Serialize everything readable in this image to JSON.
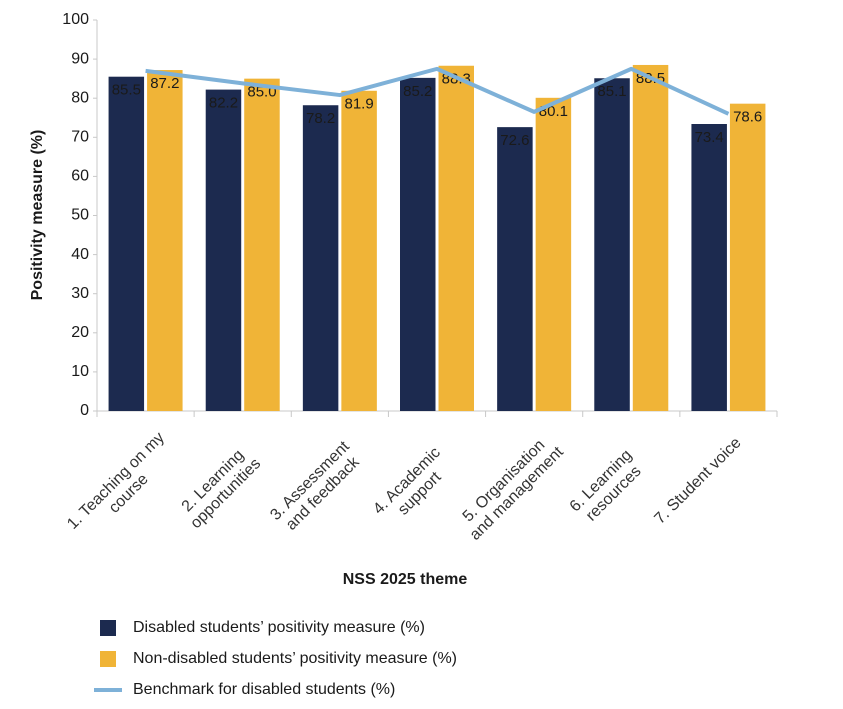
{
  "chart_data": {
    "type": "bar",
    "y_label": "Positivity measure (%)",
    "x_label": "NSS 2025 theme",
    "categories": [
      "1. Teaching on my course",
      "2. Learning opportunities",
      "3. Assessment and feedback",
      "4. Academic support",
      "5. Organisation and management",
      "6. Learning resources",
      "7. Student voice"
    ],
    "series": [
      {
        "name": "Disabled students’ positivity measure (%)",
        "type": "bar",
        "color": "#1c2a4f",
        "values": [
          85.5,
          82.2,
          78.2,
          85.2,
          72.6,
          85.1,
          73.4
        ],
        "value_labels": [
          "85.5",
          "82.2",
          "78.2",
          "85.2",
          "72.6",
          "85.1",
          "73.4"
        ]
      },
      {
        "name": "Non-disabled students’ positivity measure (%)",
        "type": "bar",
        "color": "#f0b437",
        "values": [
          87.2,
          85.0,
          81.9,
          88.3,
          80.1,
          88.5,
          78.6
        ],
        "value_labels": [
          "87.2",
          "85.0",
          "81.9",
          "88.3",
          "80.1",
          "88.5",
          "78.6"
        ]
      },
      {
        "name": "Benchmark for disabled students (%)",
        "type": "line",
        "color": "#7eb1d8",
        "values": [
          87.0,
          83.8,
          80.8,
          87.5,
          76.5,
          87.5,
          76.0
        ]
      }
    ],
    "ylim": [
      0,
      100
    ],
    "yticks": [
      0,
      10,
      20,
      30,
      40,
      50,
      60,
      70,
      80,
      90,
      100
    ],
    "grid": false
  }
}
